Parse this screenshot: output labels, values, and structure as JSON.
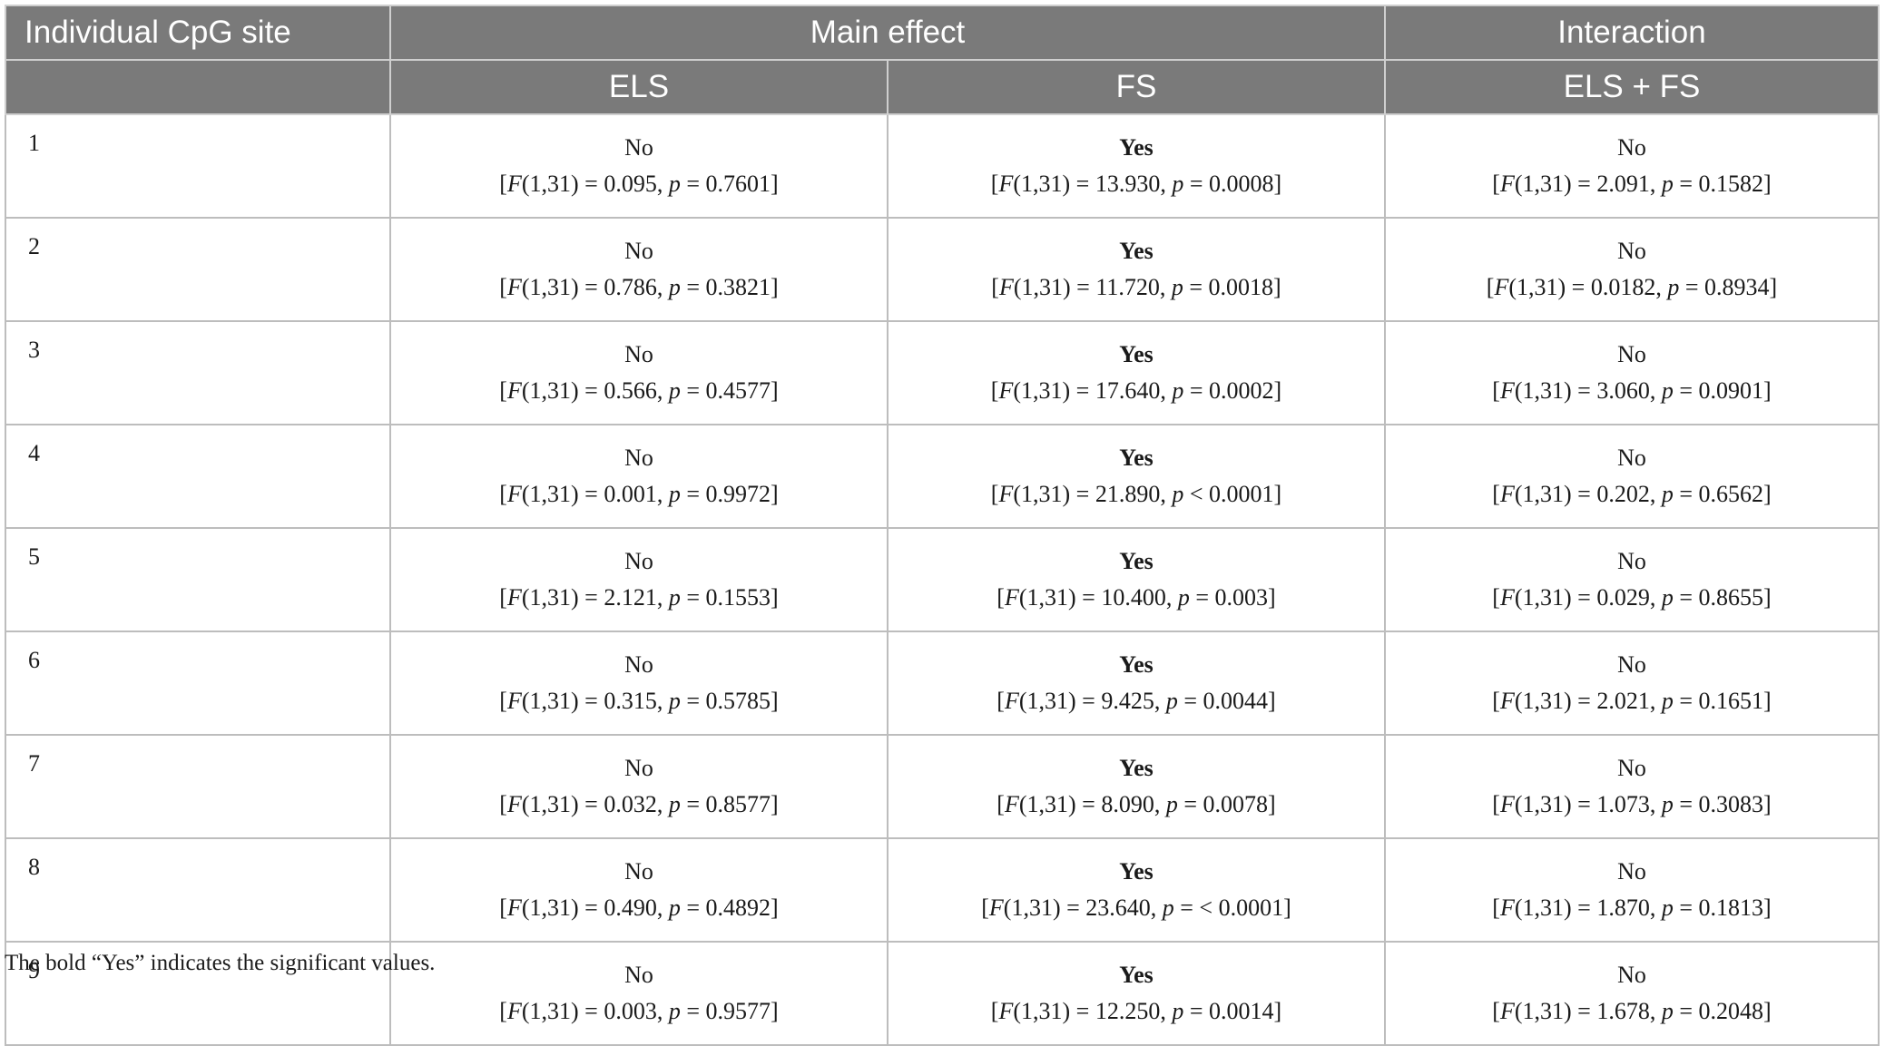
{
  "header": {
    "site_label": "Individual CpG site",
    "main_effect": "Main effect",
    "interaction": "Interaction",
    "els": "ELS",
    "fs": "FS",
    "els_fs": "ELS + FS"
  },
  "rows": [
    {
      "site": "1",
      "els": {
        "verdict": "No",
        "F": "0.095",
        "p_op": "=",
        "p": "0.7601"
      },
      "fs": {
        "verdict": "Yes",
        "F": "13.930",
        "p_op": "=",
        "p": "0.0008"
      },
      "int": {
        "verdict": "No",
        "F": "2.091",
        "p_op": "=",
        "p": "0.1582"
      }
    },
    {
      "site": "2",
      "els": {
        "verdict": "No",
        "F": "0.786",
        "p_op": "=",
        "p": "0.3821"
      },
      "fs": {
        "verdict": "Yes",
        "F": "11.720",
        "p_op": "=",
        "p": "0.0018"
      },
      "int": {
        "verdict": "No",
        "F": "0.0182",
        "p_op": "=",
        "p": "0.8934"
      }
    },
    {
      "site": "3",
      "els": {
        "verdict": "No",
        "F": "0.566",
        "p_op": "=",
        "p": "0.4577"
      },
      "fs": {
        "verdict": "Yes",
        "F": "17.640",
        "p_op": "=",
        "p": "0.0002"
      },
      "int": {
        "verdict": "No",
        "F": "3.060",
        "p_op": "=",
        "p": "0.0901"
      }
    },
    {
      "site": "4",
      "els": {
        "verdict": "No",
        "F": "0.001",
        "p_op": "=",
        "p": "0.9972"
      },
      "fs": {
        "verdict": "Yes",
        "F": "21.890",
        "p_op": "<",
        "p": "0.0001"
      },
      "int": {
        "verdict": "No",
        "F": "0.202",
        "p_op": "=",
        "p": "0.6562"
      }
    },
    {
      "site": "5",
      "els": {
        "verdict": "No",
        "F": "2.121",
        "p_op": "=",
        "p": "0.1553"
      },
      "fs": {
        "verdict": "Yes",
        "F": "10.400",
        "p_op": "=",
        "p": "0.003"
      },
      "int": {
        "verdict": "No",
        "F": "0.029",
        "p_op": "=",
        "p": "0.8655"
      }
    },
    {
      "site": "6",
      "els": {
        "verdict": "No",
        "F": "0.315",
        "p_op": "=",
        "p": "0.5785"
      },
      "fs": {
        "verdict": "Yes",
        "F": "9.425",
        "p_op": "=",
        "p": "0.0044"
      },
      "int": {
        "verdict": "No",
        "F": "2.021",
        "p_op": "=",
        "p": "0.1651"
      }
    },
    {
      "site": "7",
      "els": {
        "verdict": "No",
        "F": "0.032",
        "p_op": "=",
        "p": "0.8577"
      },
      "fs": {
        "verdict": "Yes",
        "F": "8.090",
        "p_op": "=",
        "p": "0.0078"
      },
      "int": {
        "verdict": "No",
        "F": "1.073",
        "p_op": "=",
        "p": "0.3083"
      }
    },
    {
      "site": "8",
      "els": {
        "verdict": "No",
        "F": "0.490",
        "p_op": "=",
        "p": "0.4892"
      },
      "fs": {
        "verdict": "Yes",
        "F": "23.640",
        "p_op": "= <",
        "p": "0.0001"
      },
      "int": {
        "verdict": "No",
        "F": "1.870",
        "p_op": "=",
        "p": "0.1813"
      }
    },
    {
      "site": "9",
      "els": {
        "verdict": "No",
        "F": "0.003",
        "p_op": "=",
        "p": "0.9577"
      },
      "fs": {
        "verdict": "Yes",
        "F": "12.250",
        "p_op": "=",
        "p": "0.0014"
      },
      "int": {
        "verdict": "No",
        "F": "1.678",
        "p_op": "=",
        "p": "0.2048"
      }
    }
  ],
  "footnote": "The bold “Yes” indicates the significant values."
}
